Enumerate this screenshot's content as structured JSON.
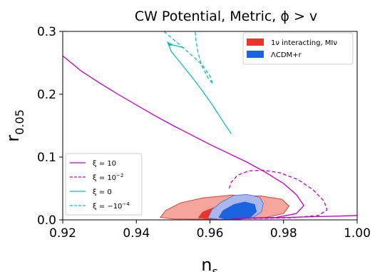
{
  "chart_data": {
    "type": "line",
    "title": "CW Potential, Metric, ϕ > v",
    "xlabel": {
      "main": "n",
      "sub": "s"
    },
    "ylabel": {
      "main": "r",
      "sub": "0.05"
    },
    "xlim": [
      0.92,
      1.0
    ],
    "ylim": [
      0.0,
      0.3
    ],
    "xticks": [
      0.92,
      0.94,
      0.96,
      0.98,
      1.0
    ],
    "xtick_labels": [
      "0.92",
      "0.94",
      "0.96",
      "0.98",
      "1.00"
    ],
    "yticks": [
      0.0,
      0.1,
      0.2,
      0.3
    ],
    "ytick_labels": [
      "0.0",
      "0.1",
      "0.2",
      "0.3"
    ],
    "grid": false,
    "contours": [
      {
        "name": "1ν interacting, MIν",
        "legend_text": "1ν interacting, MIν",
        "legend_placement": "top-right",
        "outer_color": "#f4a59c",
        "outer_edge": "#d9453a",
        "inner_color": "#e8342b",
        "outer": [
          [
            0.9465,
            0.004
          ],
          [
            0.948,
            0.015
          ],
          [
            0.952,
            0.027
          ],
          [
            0.958,
            0.035
          ],
          [
            0.966,
            0.0395
          ],
          [
            0.974,
            0.038
          ],
          [
            0.9795,
            0.033
          ],
          [
            0.9815,
            0.022
          ],
          [
            0.98,
            0.01
          ],
          [
            0.975,
            0.0035
          ],
          [
            0.966,
            0.001
          ],
          [
            0.958,
            0.001
          ],
          [
            0.95,
            0.0015
          ]
        ],
        "inner": [
          [
            0.9567,
            0.003
          ],
          [
            0.958,
            0.013
          ],
          [
            0.962,
            0.022
          ],
          [
            0.967,
            0.026
          ],
          [
            0.972,
            0.022
          ],
          [
            0.9735,
            0.012
          ],
          [
            0.971,
            0.0035
          ],
          [
            0.965,
            0.001
          ],
          [
            0.96,
            0.001
          ]
        ]
      },
      {
        "name": "ΛCDM+r",
        "legend_text": "ΛCDM+r",
        "legend_placement": "top-right",
        "outer_color": "#a9b7ec",
        "outer_edge": "#5f77d8",
        "inner_color": "#1b63df",
        "outer": [
          [
            0.9595,
            0.003
          ],
          [
            0.9605,
            0.016
          ],
          [
            0.963,
            0.028
          ],
          [
            0.9665,
            0.039
          ],
          [
            0.97,
            0.0405
          ],
          [
            0.9735,
            0.036
          ],
          [
            0.9745,
            0.026
          ],
          [
            0.974,
            0.013
          ],
          [
            0.9718,
            0.004
          ],
          [
            0.968,
            0.001
          ],
          [
            0.9625,
            0.001
          ]
        ],
        "inner": [
          [
            0.9623,
            0.004
          ],
          [
            0.9635,
            0.015
          ],
          [
            0.9665,
            0.025
          ],
          [
            0.9695,
            0.029
          ],
          [
            0.9722,
            0.025
          ],
          [
            0.9727,
            0.013
          ],
          [
            0.9712,
            0.0045
          ],
          [
            0.968,
            0.001
          ],
          [
            0.964,
            0.001
          ]
        ]
      }
    ],
    "series": [
      {
        "name": "ξ = 10",
        "legend_main": "ξ = 10",
        "legend_sup": "",
        "color": "#c100c1",
        "style": "solid",
        "points": [
          [
            0.92,
            0.261
          ],
          [
            0.925,
            0.237
          ],
          [
            0.93,
            0.218
          ],
          [
            0.935,
            0.2
          ],
          [
            0.94,
            0.183
          ],
          [
            0.945,
            0.166
          ],
          [
            0.95,
            0.15
          ],
          [
            0.955,
            0.135
          ],
          [
            0.96,
            0.12
          ],
          [
            0.965,
            0.106
          ],
          [
            0.97,
            0.092
          ],
          [
            0.975,
            0.076
          ],
          [
            0.98,
            0.058
          ],
          [
            0.9835,
            0.04
          ],
          [
            0.9855,
            0.023
          ],
          [
            0.9835,
            0.01
          ],
          [
            0.978,
            0.004
          ],
          [
            0.97,
            0.003
          ],
          [
            0.966,
            0.002
          ],
          [
            0.968,
            0.0025
          ],
          [
            0.975,
            0.003
          ],
          [
            0.985,
            0.0045
          ],
          [
            0.995,
            0.006
          ],
          [
            1.0,
            0.007
          ]
        ]
      },
      {
        "name": "ξ = 10⁻²",
        "legend_main": "ξ = 10",
        "legend_sup": "−2",
        "color": "#c100c1",
        "style": "dashed",
        "points": [
          [
            0.9652,
            0.05
          ],
          [
            0.9658,
            0.06
          ],
          [
            0.9675,
            0.071
          ],
          [
            0.9705,
            0.078
          ],
          [
            0.9745,
            0.079
          ],
          [
            0.979,
            0.075
          ],
          [
            0.984,
            0.064
          ],
          [
            0.988,
            0.048
          ],
          [
            0.991,
            0.03
          ],
          [
            0.9918,
            0.016
          ],
          [
            0.9895,
            0.007
          ],
          [
            0.9825,
            0.0035
          ],
          [
            0.975,
            0.0025
          ],
          [
            0.9685,
            0.002
          ],
          [
            0.967,
            0.0015
          ]
        ]
      },
      {
        "name": "ξ = 0",
        "legend_main": "ξ = 0",
        "legend_sup": "",
        "color": "#14bdb0",
        "style": "solid",
        "points": [
          [
            0.9658,
            0.137
          ],
          [
            0.9635,
            0.157
          ],
          [
            0.961,
            0.18
          ],
          [
            0.958,
            0.205
          ],
          [
            0.955,
            0.228
          ],
          [
            0.952,
            0.25
          ],
          [
            0.9495,
            0.268
          ],
          [
            0.9485,
            0.283
          ],
          [
            0.9495,
            0.279
          ],
          [
            0.953,
            0.274
          ]
        ]
      },
      {
        "name": "ξ = −10⁻⁴",
        "legend_main": "ξ = −10",
        "legend_sup": "−4",
        "color": "#14bdb0",
        "style": "dashed",
        "points": [
          [
            0.9475,
            0.3
          ],
          [
            0.9505,
            0.285
          ],
          [
            0.9545,
            0.265
          ],
          [
            0.958,
            0.246
          ],
          [
            0.96,
            0.229
          ],
          [
            0.9608,
            0.216
          ],
          [
            0.9595,
            0.226
          ],
          [
            0.9578,
            0.245
          ],
          [
            0.9568,
            0.265
          ],
          [
            0.9562,
            0.285
          ],
          [
            0.956,
            0.3
          ]
        ]
      }
    ],
    "legend_lines_placement": "bottom-left"
  }
}
